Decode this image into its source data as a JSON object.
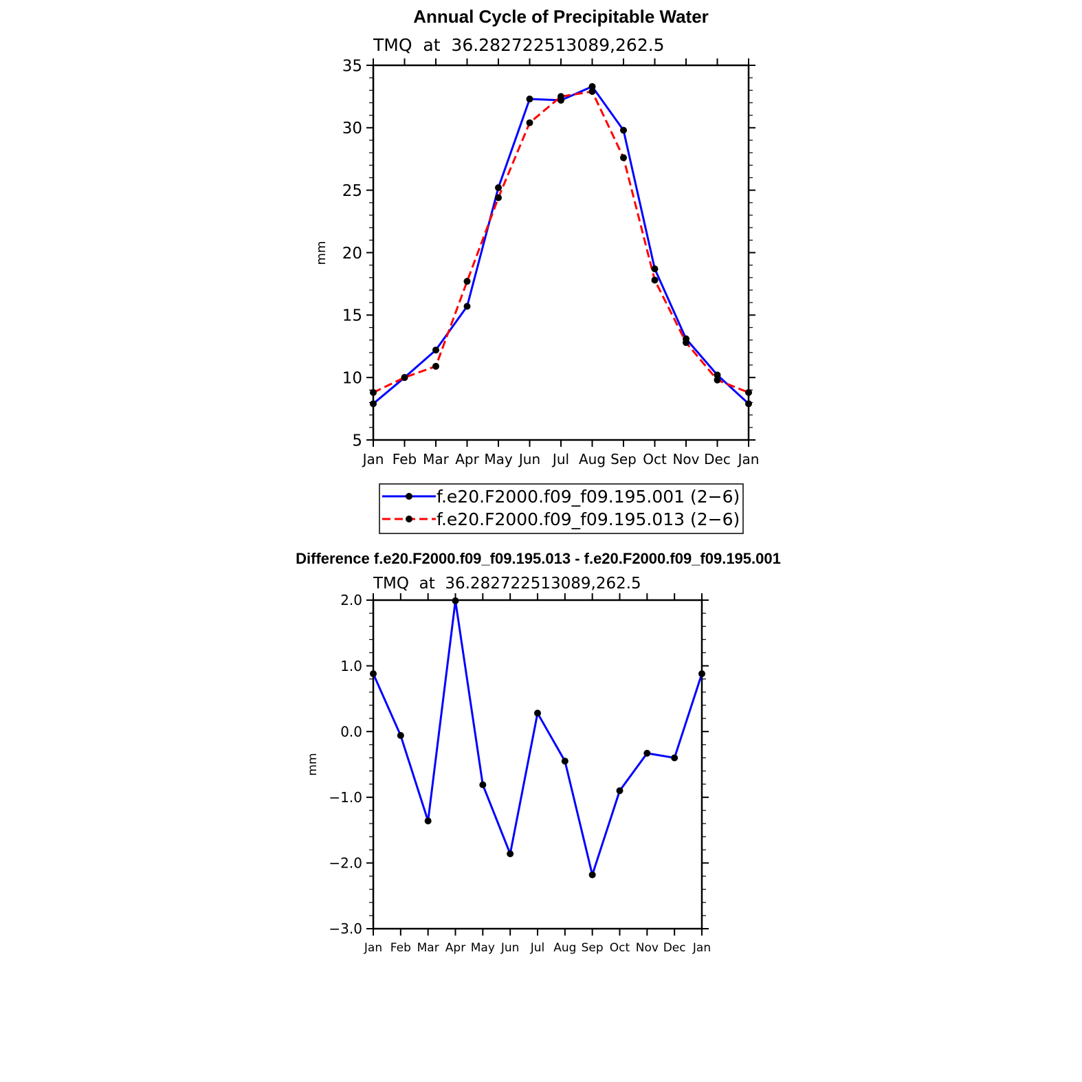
{
  "chart_data": [
    {
      "type": "line",
      "title": "Annual Cycle of Precipitable Water",
      "subtitle": "TMQ  at  36.282722513089,262.5",
      "xlabel": "",
      "ylabel": "mm",
      "categories": [
        "Jan",
        "Feb",
        "Mar",
        "Apr",
        "May",
        "Jun",
        "Jul",
        "Aug",
        "Sep",
        "Oct",
        "Nov",
        "Dec",
        "Jan"
      ],
      "ylim": [
        5,
        35
      ],
      "yticks": [
        5,
        10,
        15,
        20,
        25,
        30,
        35
      ],
      "ytick_labels": [
        "5",
        "10",
        "15",
        "20",
        "25",
        "30",
        "35"
      ],
      "legend_position": "bottom",
      "series": [
        {
          "name": "f.e20.F2000.f09_f09.195.001 (2−6)",
          "color": "#0000ff",
          "dash": "solid",
          "values": [
            7.9,
            10.0,
            12.2,
            15.7,
            25.2,
            32.3,
            32.2,
            33.3,
            29.8,
            18.7,
            13.1,
            10.2,
            7.9
          ]
        },
        {
          "name": "f.e20.F2000.f09_f09.195.013 (2−6)",
          "color": "#ff0000",
          "dash": "dashed",
          "values": [
            8.8,
            10.0,
            10.9,
            17.7,
            24.4,
            30.4,
            32.5,
            32.9,
            27.6,
            17.8,
            12.8,
            9.8,
            8.8
          ]
        }
      ]
    },
    {
      "type": "line",
      "title": "Difference f.e20.F2000.f09_f09.195.013 - f.e20.F2000.f09_f09.195.001",
      "subtitle": "TMQ  at  36.282722513089,262.5",
      "xlabel": "",
      "ylabel": "mm",
      "categories": [
        "Jan",
        "Feb",
        "Mar",
        "Apr",
        "May",
        "Jun",
        "Jul",
        "Aug",
        "Sep",
        "Oct",
        "Nov",
        "Dec",
        "Jan"
      ],
      "ylim": [
        -3.0,
        2.0
      ],
      "yticks": [
        -3,
        -2,
        -1,
        0,
        1,
        2
      ],
      "ytick_labels": [
        "−3.0",
        "−2.0",
        "−1.0",
        "0.0",
        "1.0",
        "2.0"
      ],
      "series": [
        {
          "name": "difference",
          "color": "#0000ff",
          "dash": "solid",
          "values": [
            0.88,
            -0.06,
            -1.36,
            1.99,
            -0.81,
            -1.86,
            0.28,
            -0.45,
            -2.18,
            -0.9,
            -0.33,
            -0.4,
            0.88
          ]
        }
      ]
    }
  ]
}
